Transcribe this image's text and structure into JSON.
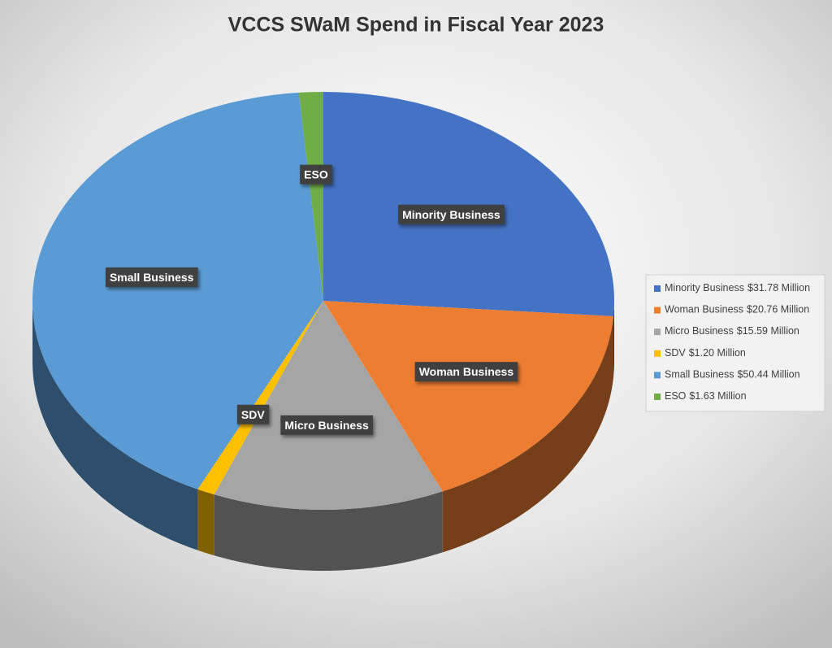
{
  "chart_data": {
    "type": "pie3d",
    "title": "VCCS SWaM Spend in Fiscal Year 2023",
    "categories": [
      "Minority Business",
      "Woman Business",
      "Micro Business",
      "SDV",
      "Small Business",
      "ESO"
    ],
    "values": [
      31.78,
      20.76,
      15.59,
      1.2,
      50.44,
      1.63
    ],
    "value_labels": [
      "$31.78 Million",
      "$20.76 Million",
      "$15.59 Million",
      "$1.20 Million",
      "$50.44 Million",
      "$1.63 Million"
    ],
    "colors": [
      "#4472c4",
      "#ed7d31",
      "#a5a5a5",
      "#ffc000",
      "#5b9bd5",
      "#70ad47"
    ],
    "legend": "right"
  }
}
